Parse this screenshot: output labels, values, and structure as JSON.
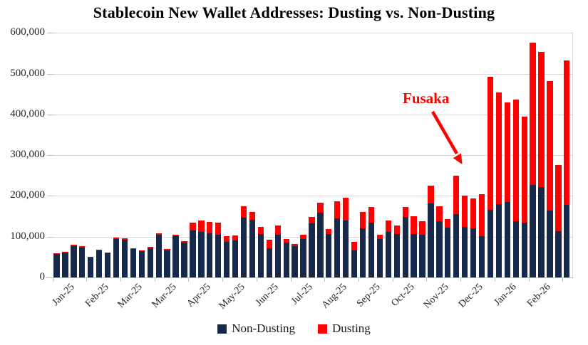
{
  "colors": {
    "non_dusting": "#17294A",
    "dusting": "#FF0000",
    "gridline": "#D9D9D9",
    "axis": "#BFBFBF",
    "text": "#262626",
    "annotation": "#FF0000",
    "background": "#FFFFFF"
  },
  "chart_data": {
    "type": "bar",
    "stacked": true,
    "title": "Stablecoin New Wallet Addresses: Dusting vs. Non-Dusting",
    "x_unit": "week",
    "x_tick_labels": [
      "Jan-25",
      "Feb-25",
      "Mar-25",
      "Mar-25",
      "Apr-25",
      "May-25",
      "Jun-25",
      "Jul-25",
      "Aug-25",
      "Sep-25",
      "Oct-25",
      "Nov-25",
      "Dec-25",
      "Jan-26",
      "Feb-26"
    ],
    "x_label_interval": 4,
    "y_tick_labels": [
      "0",
      "100,000",
      "200,000",
      "300,000",
      "400,000",
      "500,000",
      "600,000"
    ],
    "ylim": [
      0,
      600000
    ],
    "grid": "horizontal",
    "legend_position": "bottom",
    "series": [
      {
        "name": "Non-Dusting",
        "color": "#17294A",
        "values": [
          57000,
          61000,
          77000,
          73000,
          49000,
          66000,
          59000,
          95000,
          93000,
          69000,
          64000,
          72000,
          104000,
          67000,
          102000,
          86000,
          116000,
          111000,
          108000,
          105000,
          88000,
          90000,
          147000,
          141000,
          106000,
          72000,
          105000,
          85000,
          76000,
          95000,
          132000,
          158000,
          106000,
          145000,
          140000,
          66000,
          121000,
          134000,
          95000,
          111000,
          106000,
          148000,
          107000,
          104000,
          181000,
          137000,
          122000,
          155000,
          124000,
          120000,
          101000,
          166000,
          180000,
          185000,
          137000,
          135000,
          226000,
          221000,
          164000,
          113000,
          178000
        ]
      },
      {
        "name": "Dusting",
        "color": "#FF0000",
        "values": [
          2000,
          2500,
          3000,
          3000,
          2000,
          2500,
          2500,
          3500,
          3000,
          3000,
          2500,
          3000,
          3500,
          3000,
          3000,
          3000,
          19000,
          29000,
          28000,
          30000,
          14000,
          13000,
          28000,
          19000,
          18000,
          21000,
          23000,
          10000,
          6000,
          10000,
          16000,
          26000,
          13000,
          42000,
          55000,
          21000,
          40000,
          38000,
          10000,
          28000,
          21000,
          25000,
          43000,
          33000,
          45000,
          38000,
          21000,
          94000,
          76000,
          73000,
          104000,
          326000,
          273000,
          245000,
          300000,
          260000,
          350000,
          332000,
          317000,
          162000,
          355000
        ]
      }
    ],
    "annotation": {
      "text": "Fusaka",
      "color": "#FF0000",
      "target_bar_index": 48
    }
  }
}
